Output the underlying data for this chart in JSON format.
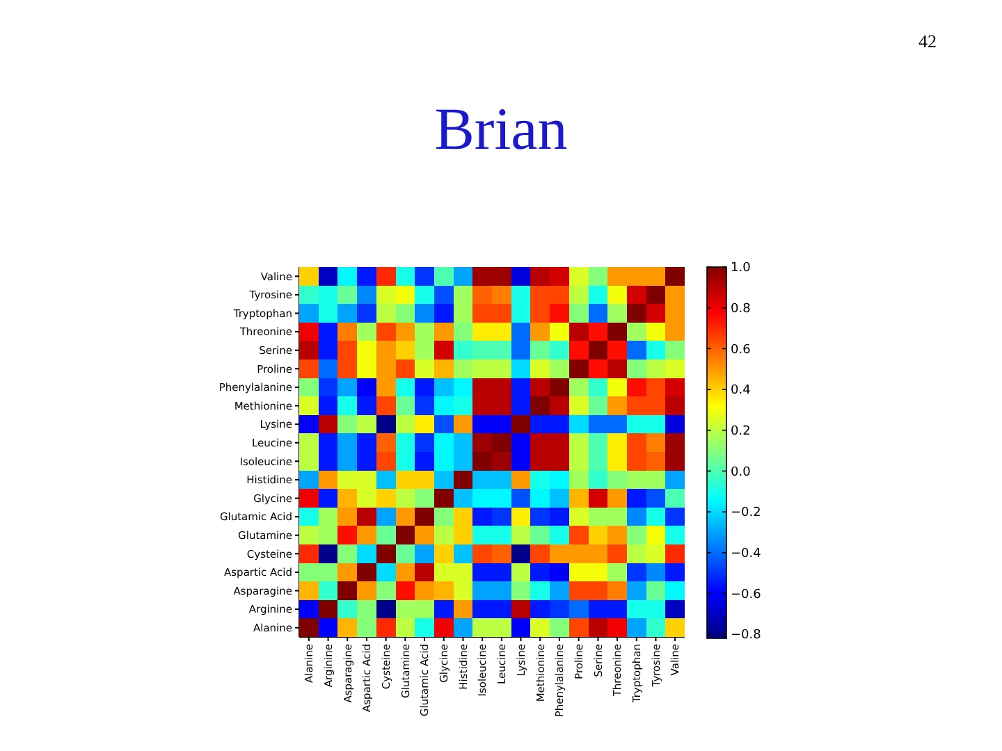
{
  "chart_data": {
    "type": "heatmap",
    "title": "Brian",
    "annotations": [
      "42"
    ],
    "categories": [
      "Alanine",
      "Arginine",
      "Asparagine",
      "Aspartic Acid",
      "Cysteine",
      "Glutamine",
      "Glutamic Acid",
      "Glycine",
      "Histidine",
      "Isoleucine",
      "Leucine",
      "Lysine",
      "Methionine",
      "Phenylalanine",
      "Proline",
      "Serine",
      "Threonine",
      "Tryptophan",
      "Tyrosine",
      "Valine"
    ],
    "y_categories": [
      "Valine",
      "Tyrosine",
      "Tryptophan",
      "Threonine",
      "Serine",
      "Proline",
      "Phenylalanine",
      "Methionine",
      "Lysine",
      "Leucine",
      "Isoleucine",
      "Histidine",
      "Glycine",
      "Glutamic Acid",
      "Glutamine",
      "Cysteine",
      "Aspartic Acid",
      "Asparagine",
      "Arginine",
      "Alanine"
    ],
    "cells": [
      [
        0.4,
        -0.7,
        -0.15,
        -0.55,
        0.7,
        -0.1,
        -0.5,
        0,
        -0.3,
        0.95,
        0.95,
        -0.65,
        0.9,
        0.85,
        0.25,
        0.1,
        0.5,
        0.5,
        0.5,
        1
      ],
      [
        -0.05,
        -0.1,
        0.05,
        -0.35,
        0.25,
        0.3,
        -0.1,
        -0.45,
        0.15,
        0.6,
        0.55,
        -0.1,
        0.65,
        0.65,
        0.2,
        -0.1,
        0.3,
        0.85,
        1,
        0.5
      ],
      [
        -0.3,
        -0.1,
        -0.3,
        -0.5,
        0.2,
        0.1,
        -0.35,
        -0.55,
        0.15,
        0.65,
        0.65,
        -0.1,
        0.65,
        0.75,
        0.1,
        -0.4,
        0.15,
        1,
        0.85,
        0.5
      ],
      [
        0.8,
        -0.55,
        0.55,
        0.15,
        0.65,
        0.5,
        0.15,
        0.5,
        0.1,
        0.35,
        0.35,
        -0.4,
        0.5,
        0.3,
        0.9,
        0.75,
        1,
        0.15,
        0.3,
        0.5
      ],
      [
        0.9,
        -0.55,
        0.65,
        0.3,
        0.5,
        0.4,
        0.15,
        0.85,
        -0.05,
        0,
        0,
        -0.4,
        0.05,
        -0.05,
        0.75,
        1,
        0.75,
        -0.4,
        -0.1,
        0.1
      ],
      [
        0.65,
        -0.4,
        0.65,
        0.3,
        0.5,
        0.65,
        0.25,
        0.45,
        0.15,
        0.2,
        0.2,
        -0.2,
        0.25,
        0.15,
        1,
        0.75,
        0.9,
        0.1,
        0.2,
        0.25
      ],
      [
        0.1,
        -0.5,
        -0.3,
        -0.6,
        0.5,
        -0.1,
        -0.55,
        -0.25,
        -0.15,
        0.9,
        0.9,
        -0.55,
        0.9,
        1,
        0.15,
        -0.05,
        0.3,
        0.75,
        0.65,
        0.85
      ],
      [
        0.25,
        -0.55,
        -0.1,
        -0.55,
        0.65,
        0.05,
        -0.5,
        -0.15,
        -0.1,
        0.9,
        0.9,
        -0.55,
        1,
        0.9,
        0.25,
        0.05,
        0.5,
        0.65,
        0.65,
        0.9
      ],
      [
        -0.6,
        0.9,
        0.1,
        0.2,
        -0.8,
        0.2,
        0.35,
        -0.45,
        0.5,
        -0.6,
        -0.6,
        1,
        -0.55,
        -0.55,
        -0.2,
        -0.4,
        -0.4,
        -0.1,
        -0.1,
        -0.65
      ],
      [
        0.2,
        -0.55,
        -0.3,
        -0.55,
        0.6,
        -0.1,
        -0.5,
        -0.15,
        -0.25,
        0.95,
        1,
        -0.6,
        0.9,
        0.9,
        0.2,
        0,
        0.35,
        0.65,
        0.55,
        0.95
      ],
      [
        0.2,
        -0.55,
        -0.3,
        -0.55,
        0.65,
        -0.1,
        -0.55,
        -0.15,
        -0.25,
        1,
        0.95,
        -0.6,
        0.9,
        0.9,
        0.2,
        0,
        0.35,
        0.65,
        0.6,
        0.95
      ],
      [
        -0.3,
        0.5,
        0.25,
        0.25,
        -0.25,
        0.4,
        0.4,
        -0.25,
        1,
        -0.25,
        -0.25,
        0.5,
        -0.1,
        -0.15,
        0.15,
        -0.05,
        0.1,
        0.15,
        0.15,
        -0.3
      ],
      [
        0.8,
        -0.55,
        0.45,
        0.25,
        0.4,
        0.2,
        0.1,
        1,
        -0.25,
        -0.15,
        -0.15,
        -0.45,
        -0.15,
        -0.25,
        0.45,
        0.85,
        0.5,
        -0.55,
        -0.45,
        0
      ],
      [
        -0.1,
        0.15,
        0.5,
        0.9,
        -0.3,
        0.5,
        1,
        0.1,
        0.4,
        -0.55,
        -0.5,
        0.35,
        -0.5,
        -0.55,
        0.25,
        0.15,
        0.15,
        -0.35,
        -0.1,
        -0.5
      ],
      [
        0.2,
        0.15,
        0.75,
        0.5,
        0.05,
        1,
        0.5,
        0.2,
        0.4,
        -0.1,
        -0.1,
        0.2,
        0.05,
        -0.1,
        0.65,
        0.4,
        0.5,
        0.1,
        0.3,
        -0.1
      ],
      [
        0.7,
        -0.8,
        0.1,
        -0.2,
        1,
        0.05,
        -0.3,
        0.4,
        -0.25,
        0.65,
        0.6,
        -0.8,
        0.65,
        0.5,
        0.5,
        0.5,
        0.65,
        0.2,
        0.25,
        0.7
      ],
      [
        0.1,
        0.1,
        0.5,
        1,
        -0.2,
        0.5,
        0.9,
        0.25,
        0.25,
        -0.55,
        -0.55,
        0.2,
        -0.55,
        -0.6,
        0.3,
        0.3,
        0.15,
        -0.5,
        -0.35,
        -0.55
      ],
      [
        0.45,
        -0.05,
        1,
        0.5,
        0.1,
        0.75,
        0.5,
        0.45,
        0.25,
        -0.3,
        -0.3,
        0.1,
        -0.1,
        -0.3,
        0.65,
        0.65,
        0.55,
        -0.3,
        0.05,
        -0.15
      ],
      [
        -0.6,
        1,
        -0.05,
        0.1,
        -0.8,
        0.15,
        0.15,
        -0.55,
        0.5,
        -0.55,
        -0.55,
        0.9,
        -0.55,
        -0.5,
        -0.4,
        -0.55,
        -0.55,
        -0.1,
        -0.1,
        -0.7
      ],
      [
        1,
        -0.6,
        0.45,
        0.1,
        0.7,
        0.2,
        -0.1,
        0.8,
        -0.3,
        0.2,
        0.2,
        -0.6,
        0.25,
        0.1,
        0.65,
        0.9,
        0.8,
        -0.3,
        -0.05,
        0.4
      ]
    ],
    "clim": [
      -0.82,
      1.0
    ],
    "cticks": [
      {
        "value": 1,
        "label": "1.0"
      },
      {
        "value": 0.8,
        "label": "0.8"
      },
      {
        "value": 0.6,
        "label": "0.6"
      },
      {
        "value": 0.4,
        "label": "0.4"
      },
      {
        "value": 0.2,
        "label": "0.2"
      },
      {
        "value": 0,
        "label": "0.0"
      },
      {
        "value": -0.2,
        "label": "−0.2"
      },
      {
        "value": -0.4,
        "label": "−0.4"
      },
      {
        "value": -0.6,
        "label": "−0.6"
      },
      {
        "value": -0.8,
        "label": "−0.8"
      }
    ]
  }
}
